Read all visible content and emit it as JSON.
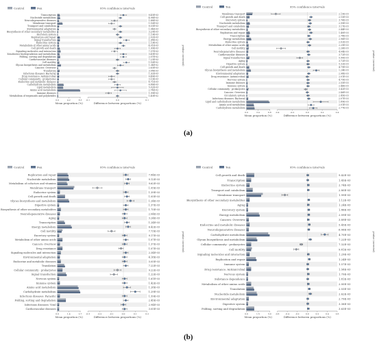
{
  "panel_labels": [
    "(a)",
    "(b)"
  ],
  "chart_data": [
    {
      "type": "bar",
      "panel": "(a)",
      "subpanel": "left",
      "legend": [
        "Control",
        "Fen"
      ],
      "ci_title": "95% confidence intervals",
      "xlabel_left": "Mean proportion (%)",
      "xlabel_right": "Difference between proportions (%)",
      "side_title": "p-value (corrected)",
      "categories": [
        "Transcription",
        "Nucleotide metabolism",
        "Neurodegenerative diseases",
        "Membrane transport",
        "Transport and catabolism",
        "Environmental adaptation",
        "Biosynthesis of other secondary metabolites",
        "Excretory system",
        "Replication and repair",
        "Signal transduction",
        "Endocrine system",
        "Metabolism of other amino acids",
        "Cell growth and death",
        "Signaling molecules and interaction",
        "Xenobiotics biodegradation and metabolism",
        "Folding, sorting and degradation",
        "Cardiovascular diseases",
        "Cell motility",
        "Glycan biosynthesis and metabolism",
        "Cancers: Overview",
        "Translation",
        "Infectious diseases: Bacterial",
        "Drug resistance: Antimicrobial",
        "Cellular community - prokaryotes",
        "Endocrine and metabolic diseases",
        "Carbohydrate metabolism",
        "Lipid metabolism",
        "Amino acid metabolism",
        "Immune diseases",
        "Metabolism of terpenoids and polyketides"
      ],
      "control": [
        0.8,
        0.9,
        0.5,
        1.8,
        0.6,
        0.4,
        0.3,
        0.2,
        0.8,
        0.9,
        0.5,
        0.6,
        0.8,
        1.1,
        0.7,
        1.0,
        0.4,
        0.7,
        1.3,
        0.3,
        0.8,
        0.5,
        0.6,
        0.5,
        0.4,
        2.2,
        2.0,
        8.1,
        0.2,
        0.3
      ],
      "treat": [
        0.9,
        1.0,
        0.6,
        1.9,
        0.6,
        0.5,
        0.3,
        0.2,
        0.9,
        0.9,
        0.6,
        0.6,
        0.9,
        1.2,
        0.8,
        1.0,
        0.4,
        0.7,
        1.3,
        0.3,
        0.8,
        0.5,
        0.6,
        0.5,
        0.4,
        2.3,
        2.1,
        8.3,
        0.2,
        0.3
      ],
      "diff": [
        0.02,
        0.01,
        -0.01,
        -0.02,
        0.01,
        -0.01,
        0.01,
        0.0,
        0.01,
        0.03,
        0.01,
        0.02,
        0.0,
        -0.01,
        0.02,
        0.02,
        0.0,
        0.03,
        0.01,
        -0.01,
        0.0,
        0.0,
        -0.02,
        -0.02,
        -0.01,
        0.0,
        0.0,
        0.01,
        -0.03,
        0.0
      ],
      "err": [
        0.01,
        0.005,
        0.01,
        0.01,
        0.005,
        0.005,
        0.005,
        0.005,
        0.005,
        0.01,
        0.005,
        0.005,
        0.01,
        0.01,
        0.01,
        0.01,
        0.005,
        0.01,
        0.01,
        0.005,
        0.005,
        0.005,
        0.01,
        0.01,
        0.005,
        0.01,
        0.02,
        0.02,
        0.01,
        0.005
      ],
      "pvalues": [
        "8.45E-03",
        "4.98E-03",
        "1.88E-03",
        "1.16E-03",
        "8.03E-03",
        "1.04E-03",
        "3.20E-03",
        "1.19E-03",
        "2.02E-03",
        "1.98E-02",
        "1.19E-02",
        "4.01E-03",
        "1.90E-03",
        "7.37E-03",
        "5.49E-03",
        "2.07E-02",
        "7.23E-03",
        "1.16E-02",
        "1.34E-02",
        "2.63E-03",
        "3.08E-03",
        "1.92E-03",
        "6.46E-03",
        "3.10E-03",
        "4.71E-03",
        "6.86E-03",
        "5.02E-03",
        "2.74E-02",
        "1.99E-03",
        "1.40E-02"
      ],
      "diff_ticks": [
        "-0.1",
        "0.0",
        "0.1"
      ]
    },
    {
      "type": "bar",
      "panel": "(a)",
      "subpanel": "right",
      "legend": [
        "Control",
        "Ten"
      ],
      "ci_title": "95% confidence intervals",
      "xlabel_left": "Mean proportion (%)",
      "xlabel_right": "Difference between proportions (%)",
      "side_title": "p-value (corrected)",
      "categories": [
        "Membrane transport",
        "Cell growth and death",
        "Excretory system",
        "Nucleotide metabolism",
        "Transport and catabolism",
        "Biosynthesis of other secondary metabolites",
        "Replication and repair",
        "Transcription",
        "Energy metabolism",
        "Endocrine system",
        "Metabolism of other amino acids",
        "Cell motility",
        "Neurodegenerative diseases",
        "Cardiovascular diseases",
        "Signal transduction",
        "Aging",
        "Digestive system",
        "Cell growth and death",
        "Glycan biosynthesis and metabolism",
        "Environmental adaptation",
        "Drug resistance: Antimicrobial",
        "Nervous system",
        "Immune diseases",
        "Immune system",
        "Cellular community - prokaryotes",
        "Cancers: Overview",
        "Circulatory system",
        "Infectious diseases: Bacterial",
        "Lipid and carbohydrate metabolism",
        "Amino acid metabolism",
        "Carbohydrate metabolism"
      ],
      "control": [
        1.8,
        0.9,
        0.3,
        0.9,
        0.7,
        0.4,
        0.9,
        0.8,
        1.3,
        0.4,
        0.6,
        0.7,
        0.5,
        0.4,
        0.9,
        0.3,
        0.2,
        0.8,
        1.2,
        0.5,
        0.6,
        0.2,
        0.3,
        0.3,
        0.6,
        0.3,
        0.2,
        0.5,
        6.5,
        2.1,
        2.3
      ],
      "treat": [
        1.7,
        0.9,
        0.3,
        1.0,
        0.7,
        0.4,
        1.0,
        0.8,
        1.4,
        0.4,
        0.6,
        0.6,
        0.5,
        0.4,
        0.8,
        0.3,
        0.2,
        0.8,
        1.3,
        0.5,
        0.6,
        0.2,
        0.3,
        0.3,
        0.5,
        0.3,
        0.2,
        0.5,
        6.8,
        2.2,
        2.4
      ],
      "diff": [
        -0.42,
        0.05,
        0.03,
        0.04,
        0.02,
        0.03,
        0.05,
        0.02,
        0.04,
        0.01,
        0.03,
        -0.35,
        0.01,
        0.02,
        -0.1,
        0.01,
        0.01,
        0.02,
        0.12,
        0.02,
        0.0,
        0.01,
        0.01,
        0.01,
        -0.02,
        0.0,
        0.01,
        0.02,
        0.18,
        0.05,
        0.08
      ],
      "err": [
        0.06,
        0.02,
        0.02,
        0.02,
        0.02,
        0.02,
        0.02,
        0.02,
        0.02,
        0.02,
        0.02,
        0.06,
        0.02,
        0.02,
        0.04,
        0.02,
        0.02,
        0.02,
        0.04,
        0.02,
        0.02,
        0.02,
        0.02,
        0.02,
        0.02,
        0.02,
        0.02,
        0.02,
        0.1,
        0.04,
        0.05
      ],
      "pvalues": [
        "2.15E-03",
        "2.15E-03",
        "3.76E-03",
        "2.99E-03",
        "3.17E-03",
        "2.44E-03",
        "1.40E-03",
        "2.78E-03",
        "2.96E-03",
        "2.02E-03",
        "2.29E-03",
        "2.26E-03",
        "4.04E-03",
        "3.72E-03",
        "5.90E-03",
        "3.72E-03",
        "5.32E-03",
        "4.79E-03",
        "1.24E-03",
        "2.98E-03",
        "2.01E-03",
        "4.75E-03",
        "2.55E-03",
        "2.46E-03",
        "3.42E-03",
        "2.86E-03",
        "2.45E-03",
        "2.07E-03",
        "1.89E-03",
        "2.01E-03",
        "2.77E-03"
      ],
      "diff_ticks": [
        "-0.4",
        "-0.2",
        "0.0",
        "0.2",
        "0.4"
      ]
    },
    {
      "type": "bar",
      "panel": "(b)",
      "subpanel": "left",
      "legend": [
        "Control",
        "Fen"
      ],
      "ci_title": "95% confidence intervals",
      "xlabel_left": "Mean proportion (%)",
      "xlabel_right": "Difference between proportions (%)",
      "side_title": "p-value (corrected)",
      "categories": [
        "Replication and repair",
        "Nucleotide metabolism",
        "Metabolism of cofactors and vitamins",
        "Membrane transport",
        "Endocrine system",
        "Cell growth and death",
        "Glycan biosynthesis and metabolism",
        "Digestive system",
        "Biosynthesis of other secondary metabolites",
        "Neurodegenerative diseases",
        "Aging",
        "Transcription",
        "Energy metabolism",
        "Cell motility",
        "Excretory system",
        "Metabolism of other amino acids",
        "Cancers: Overview",
        "Drug resistance",
        "Signaling molecules and interaction",
        "Environmental adaptation",
        "Endocrine and metabolic diseases",
        "Translation",
        "Cellular community - prokaryotes",
        "Signal transduction",
        "Nervous system",
        "Immune system",
        "Amino acid metabolism",
        "Carbohydrate metabolism",
        "Infectious diseases: Parasitic",
        "Folding, sorting and degradation",
        "Infectious diseases: Viral",
        "Cardiovascular diseases"
      ],
      "control": [
        1.2,
        1.3,
        1.1,
        2.0,
        0.3,
        0.9,
        1.3,
        0.2,
        0.4,
        0.3,
        0.2,
        0.8,
        1.6,
        0.6,
        0.2,
        0.6,
        0.3,
        0.6,
        0.4,
        0.3,
        0.4,
        0.8,
        0.6,
        1.0,
        0.2,
        0.3,
        2.4,
        2.6,
        0.3,
        1.0,
        0.2,
        0.2
      ],
      "treat": [
        1.3,
        1.4,
        1.2,
        1.9,
        0.3,
        0.9,
        1.4,
        0.2,
        0.4,
        0.3,
        0.2,
        0.9,
        1.7,
        0.5,
        0.2,
        0.6,
        0.3,
        0.6,
        0.4,
        0.3,
        0.4,
        0.9,
        0.6,
        1.1,
        0.2,
        0.3,
        2.5,
        2.7,
        0.3,
        1.0,
        0.2,
        0.2
      ],
      "diff": [
        0.02,
        0.04,
        0.03,
        -0.22,
        0.02,
        0.03,
        0.06,
        0.02,
        0.02,
        0.01,
        0.01,
        0.03,
        0.04,
        -0.1,
        0.01,
        0.02,
        0.01,
        -0.02,
        0.02,
        0.01,
        0.01,
        0.02,
        -0.05,
        -0.08,
        0.01,
        0.01,
        0.03,
        0.1,
        0.01,
        0.02,
        0.0,
        0.01
      ],
      "err": [
        0.02,
        0.02,
        0.02,
        0.04,
        0.02,
        0.02,
        0.03,
        0.02,
        0.02,
        0.02,
        0.02,
        0.02,
        0.02,
        0.03,
        0.02,
        0.02,
        0.02,
        0.02,
        0.02,
        0.02,
        0.02,
        0.02,
        0.03,
        0.03,
        0.02,
        0.02,
        0.03,
        0.04,
        0.02,
        0.02,
        0.02,
        0.02
      ],
      "pvalues": [
        "7.84E-03",
        "9.12E-03",
        "9.62E-03",
        "1.05E-03",
        "1.39E-03",
        "1.05E-03",
        "1.24E-03",
        "1.37E-03",
        "1.75E-03",
        "2.04E-03",
        "3.24E-03",
        "1.24E-03",
        "6.42E-03",
        "7.73E-03",
        "9.17E-03",
        "1.07E-03",
        "1.37E-03",
        "1.07E-03",
        "2.34E-03",
        "4.18E-03",
        "5.05E-03",
        "7.22E-03",
        "9.22E-03",
        "1.22E-03",
        "1.61E-03",
        "1.42E-03",
        "1.28E-03",
        "1.29E-03",
        "1.59E-03",
        "2.45E-03",
        "2.94E-03",
        "3.05E-03"
      ],
      "diff_ticks": [
        "-0.3",
        "-0.2",
        "-0.1",
        "0.0",
        "0.1",
        "0.2"
      ]
    },
    {
      "type": "bar",
      "panel": "(b)",
      "subpanel": "right",
      "legend": [
        "Control",
        "Ten"
      ],
      "ci_title": "95% confidence intervals",
      "xlabel_left": "Mean proportion (%)",
      "xlabel_right": "Difference between proportions (%)",
      "side_title": "p-value (corrected)",
      "categories": [
        "Cell growth and death",
        "Transcription",
        "Endocrine system",
        "Transport and catabolism",
        "Membrane transport",
        "Biosynthesis of other secondary metabolites",
        "Aging",
        "Excretory system",
        "Energy metabolism",
        "Cancers: Overview",
        "Endocrine and metabolic diseases",
        "Neurodegenerative diseases",
        "Carbohydrate metabolism",
        "Glycan biosynthesis and metabolism",
        "Cellular community - prokaryotes",
        "Cell motility",
        "Signaling molecules and interaction",
        "Replication and repair",
        "Immune system",
        "Drug resistance: Antimicrobial",
        "Nervous system",
        "Substance dependence",
        "Metabolism of other amino acids",
        "Translation",
        "Nucleotide metabolism",
        "Environmental adaptation",
        "Digestive system",
        "Folding, sorting and degradation"
      ],
      "control": [
        1.0,
        0.6,
        0.4,
        0.8,
        2.1,
        0.4,
        0.2,
        0.2,
        1.6,
        0.3,
        0.4,
        0.3,
        2.8,
        1.3,
        0.6,
        0.7,
        0.4,
        1.2,
        0.3,
        0.6,
        0.2,
        0.2,
        0.6,
        0.9,
        1.3,
        0.3,
        0.2,
        1.0
      ],
      "treat": [
        1.0,
        0.6,
        0.4,
        0.8,
        1.9,
        0.4,
        0.2,
        0.2,
        1.7,
        0.3,
        0.4,
        0.3,
        3.0,
        1.4,
        0.6,
        0.6,
        0.4,
        1.3,
        0.3,
        0.6,
        0.2,
        0.2,
        0.6,
        1.0,
        1.4,
        0.3,
        0.2,
        1.0
      ],
      "diff": [
        0.01,
        0.01,
        0.02,
        0.02,
        -0.45,
        0.03,
        0.02,
        0.03,
        0.03,
        0.02,
        0.04,
        0.03,
        0.35,
        0.06,
        -0.12,
        -0.22,
        0.02,
        0.04,
        0.01,
        0.01,
        0.02,
        0.01,
        0.02,
        0.04,
        0.06,
        0.01,
        0.01,
        0.02
      ],
      "err": [
        0.02,
        0.02,
        0.02,
        0.02,
        0.06,
        0.02,
        0.02,
        0.02,
        0.02,
        0.02,
        0.02,
        0.02,
        0.07,
        0.03,
        0.03,
        0.05,
        0.02,
        0.02,
        0.02,
        0.02,
        0.02,
        0.02,
        0.02,
        0.02,
        0.03,
        0.02,
        0.02,
        0.02
      ],
      "pvalues": [
        "9.42E-03",
        "1.45E-03",
        "2.74E-03",
        "2.80E-03",
        "1.99E-03",
        "1.12E-03",
        "1.24E-03",
        "1.86E-03",
        "2.09E-03",
        "3.89E-03",
        "5.45E-03",
        "6.06E-03",
        "4.70E-03",
        "7.22E-03",
        "7.32E-03",
        "9.81E-03",
        "1.29E-03",
        "1.24E-03",
        "1.57E-03",
        "1.58E-03",
        "1.79E-03",
        "1.81E-03",
        "2.00E-03",
        "2.03E-03",
        "2.62E-03",
        "2.79E-03",
        "3.38E-03",
        "3.63E-03"
      ],
      "diff_ticks": [
        "-0.6",
        "-0.4",
        "-0.2",
        "0.0",
        "0.2",
        "0.4",
        "0.6"
      ]
    }
  ]
}
